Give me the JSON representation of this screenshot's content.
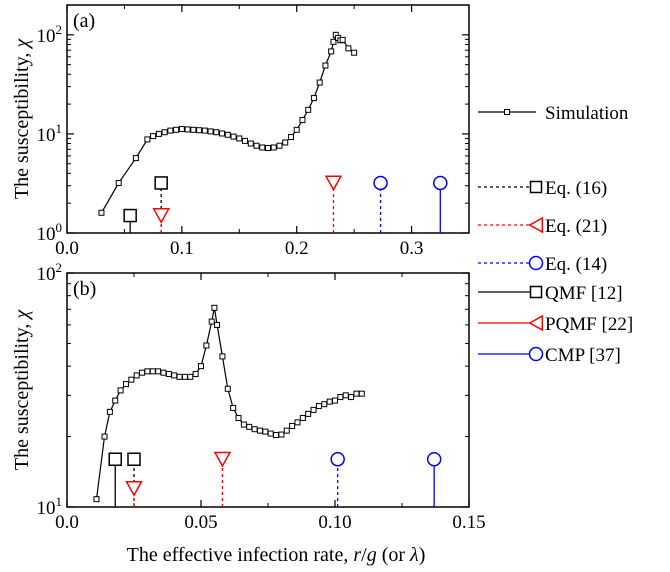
{
  "chart_data": [
    {
      "panel_label": "(a)",
      "type": "line",
      "ylabel_text": "The susceptibility, ",
      "ylabel_symbol": "χ",
      "y_scale": "log",
      "xlim": [
        0.0,
        0.35
      ],
      "ylim": [
        1,
        200
      ],
      "x_ticks": [
        {
          "v": 0.0,
          "label": "0.0"
        },
        {
          "v": 0.1,
          "label": "0.1"
        },
        {
          "v": 0.2,
          "label": "0.2"
        },
        {
          "v": 0.3,
          "label": "0.3"
        }
      ],
      "y_ticks": [
        {
          "v": 1,
          "base": "10",
          "exp": "0"
        },
        {
          "v": 10,
          "base": "10",
          "exp": "1"
        },
        {
          "v": 100,
          "base": "10",
          "exp": "2"
        }
      ],
      "series": [
        {
          "name": "Simulation",
          "color": "#000000",
          "marker": "square-small",
          "x": [
            0.03,
            0.045,
            0.06,
            0.07,
            0.075,
            0.08,
            0.085,
            0.09,
            0.095,
            0.1,
            0.105,
            0.11,
            0.115,
            0.12,
            0.125,
            0.13,
            0.135,
            0.14,
            0.145,
            0.15,
            0.155,
            0.16,
            0.165,
            0.17,
            0.175,
            0.18,
            0.185,
            0.19,
            0.195,
            0.2,
            0.205,
            0.21,
            0.215,
            0.22,
            0.225,
            0.23,
            0.232,
            0.234,
            0.236,
            0.238,
            0.24,
            0.245,
            0.25
          ],
          "y": [
            1.6,
            3.2,
            5.7,
            8.8,
            9.5,
            10.0,
            10.4,
            10.8,
            11.0,
            11.2,
            11.1,
            11.0,
            10.9,
            10.8,
            10.6,
            10.4,
            10.1,
            9.8,
            9.4,
            9.0,
            8.5,
            8.0,
            7.6,
            7.3,
            7.2,
            7.3,
            7.6,
            8.2,
            9.3,
            11.0,
            13.8,
            17.5,
            23.0,
            33.0,
            49.0,
            68.0,
            85.0,
            100.0,
            93.0,
            88.0,
            89.0,
            73.0,
            66.0
          ]
        }
      ],
      "thresholds": [
        {
          "name": "Eq. (16)",
          "color": "#000000",
          "marker": "square",
          "style": "solid",
          "x": 0.055,
          "y": 1.5
        },
        {
          "name": "Eq. (16)",
          "color": "#000000",
          "marker": "square",
          "style": "dashed",
          "x": 0.082,
          "y": 3.2
        },
        {
          "name": "Eq. (21)",
          "color": "#ff0000",
          "marker": "triangle-down",
          "style": "dashed",
          "x": 0.082,
          "y": 1.5
        },
        {
          "name": "Eq. (21)",
          "color": "#ff0000",
          "marker": "triangle-down",
          "style": "dashed",
          "x": 0.232,
          "y": 3.2
        },
        {
          "name": "Eq. (14)",
          "color": "#0000ff",
          "marker": "circle",
          "style": "dashed",
          "x": 0.273,
          "y": 3.2
        },
        {
          "name": "CMP",
          "color": "#0000ff",
          "marker": "circle",
          "style": "solid",
          "x": 0.325,
          "y": 3.2
        }
      ]
    },
    {
      "panel_label": "(b)",
      "type": "line",
      "ylabel_text": "The susceptibility, ",
      "ylabel_symbol": "χ",
      "y_scale": "log",
      "xlim": [
        0.0,
        0.15
      ],
      "ylim": [
        10,
        100
      ],
      "x_ticks": [
        {
          "v": 0.0,
          "label": "0.0"
        },
        {
          "v": 0.05,
          "label": "0.05"
        },
        {
          "v": 0.1,
          "label": "0.10"
        },
        {
          "v": 0.15,
          "label": "0.15"
        }
      ],
      "y_ticks": [
        {
          "v": 10,
          "base": "10",
          "exp": "1"
        },
        {
          "v": 100,
          "base": "10",
          "exp": "2"
        }
      ],
      "series": [
        {
          "name": "Simulation",
          "color": "#000000",
          "marker": "square-small",
          "x": [
            0.011,
            0.014,
            0.016,
            0.018,
            0.02,
            0.022,
            0.024,
            0.026,
            0.028,
            0.03,
            0.032,
            0.034,
            0.036,
            0.038,
            0.04,
            0.042,
            0.044,
            0.046,
            0.048,
            0.05,
            0.052,
            0.054,
            0.055,
            0.056,
            0.058,
            0.06,
            0.062,
            0.064,
            0.066,
            0.068,
            0.07,
            0.072,
            0.074,
            0.076,
            0.078,
            0.08,
            0.082,
            0.084,
            0.086,
            0.088,
            0.09,
            0.092,
            0.094,
            0.096,
            0.098,
            0.1,
            0.102,
            0.104,
            0.106,
            0.108,
            0.11
          ],
          "y": [
            10.8,
            20.0,
            25.5,
            28.5,
            31.5,
            33.5,
            35.0,
            36.5,
            37.5,
            38.0,
            38.0,
            38.0,
            37.5,
            37.0,
            36.5,
            36.0,
            36.0,
            36.0,
            37.0,
            40.0,
            49.0,
            62.0,
            71.0,
            60.0,
            44.0,
            32.0,
            26.5,
            24.0,
            22.5,
            22.0,
            21.5,
            21.2,
            21.0,
            20.6,
            20.3,
            20.4,
            21.2,
            22.2,
            23.0,
            24.0,
            25.0,
            26.0,
            27.0,
            27.5,
            28.2,
            28.5,
            29.5,
            30.0,
            29.5,
            30.5,
            30.5
          ]
        }
      ],
      "thresholds": [
        {
          "name": "QMF [12]",
          "color": "#000000",
          "marker": "square",
          "style": "solid",
          "x": 0.018,
          "y": 16.0
        },
        {
          "name": "QMF [12]",
          "color": "#000000",
          "marker": "square",
          "style": "dashed",
          "x": 0.025,
          "y": 16.0
        },
        {
          "name": "PQMF [22]",
          "color": "#ff0000",
          "marker": "triangle-down",
          "style": "dashed",
          "x": 0.025,
          "y": 12.0
        },
        {
          "name": "PQMF [22]",
          "color": "#ff0000",
          "marker": "triangle-down",
          "style": "dashed",
          "x": 0.058,
          "y": 16.0
        },
        {
          "name": "CMP [37]",
          "color": "#0000ff",
          "marker": "circle",
          "style": "dashed",
          "x": 0.101,
          "y": 16.0
        },
        {
          "name": "CMP [37]",
          "color": "#0000ff",
          "marker": "circle",
          "style": "solid",
          "x": 0.137,
          "y": 16.0
        }
      ]
    }
  ],
  "xlabel_text": "The effective infection rate,  ",
  "xlabel_r": "r",
  "xlabel_slash": "/",
  "xlabel_g": "g",
  "xlabel_or": " (or ",
  "xlabel_lambda": "λ",
  "xlabel_close": ")",
  "legend_a": [
    {
      "label": "Simulation",
      "color": "#000000",
      "marker": "square-small",
      "style": "solid"
    },
    {
      "label": "Eq. (16)",
      "color": "#000000",
      "marker": "square",
      "style": "dashed"
    },
    {
      "label": "Eq. (21)",
      "color": "#ff0000",
      "marker": "triangle-left",
      "style": "dashed"
    },
    {
      "label": "Eq. (14)",
      "color": "#0000ff",
      "marker": "circle",
      "style": "dashed"
    }
  ],
  "legend_b": [
    {
      "label": "QMF [12]",
      "color": "#000000",
      "marker": "square",
      "style": "solid"
    },
    {
      "label": "PQMF [22]",
      "color": "#ff0000",
      "marker": "triangle-left",
      "style": "solid"
    },
    {
      "label": "CMP [37]",
      "color": "#0000ff",
      "marker": "circle",
      "style": "solid"
    }
  ]
}
